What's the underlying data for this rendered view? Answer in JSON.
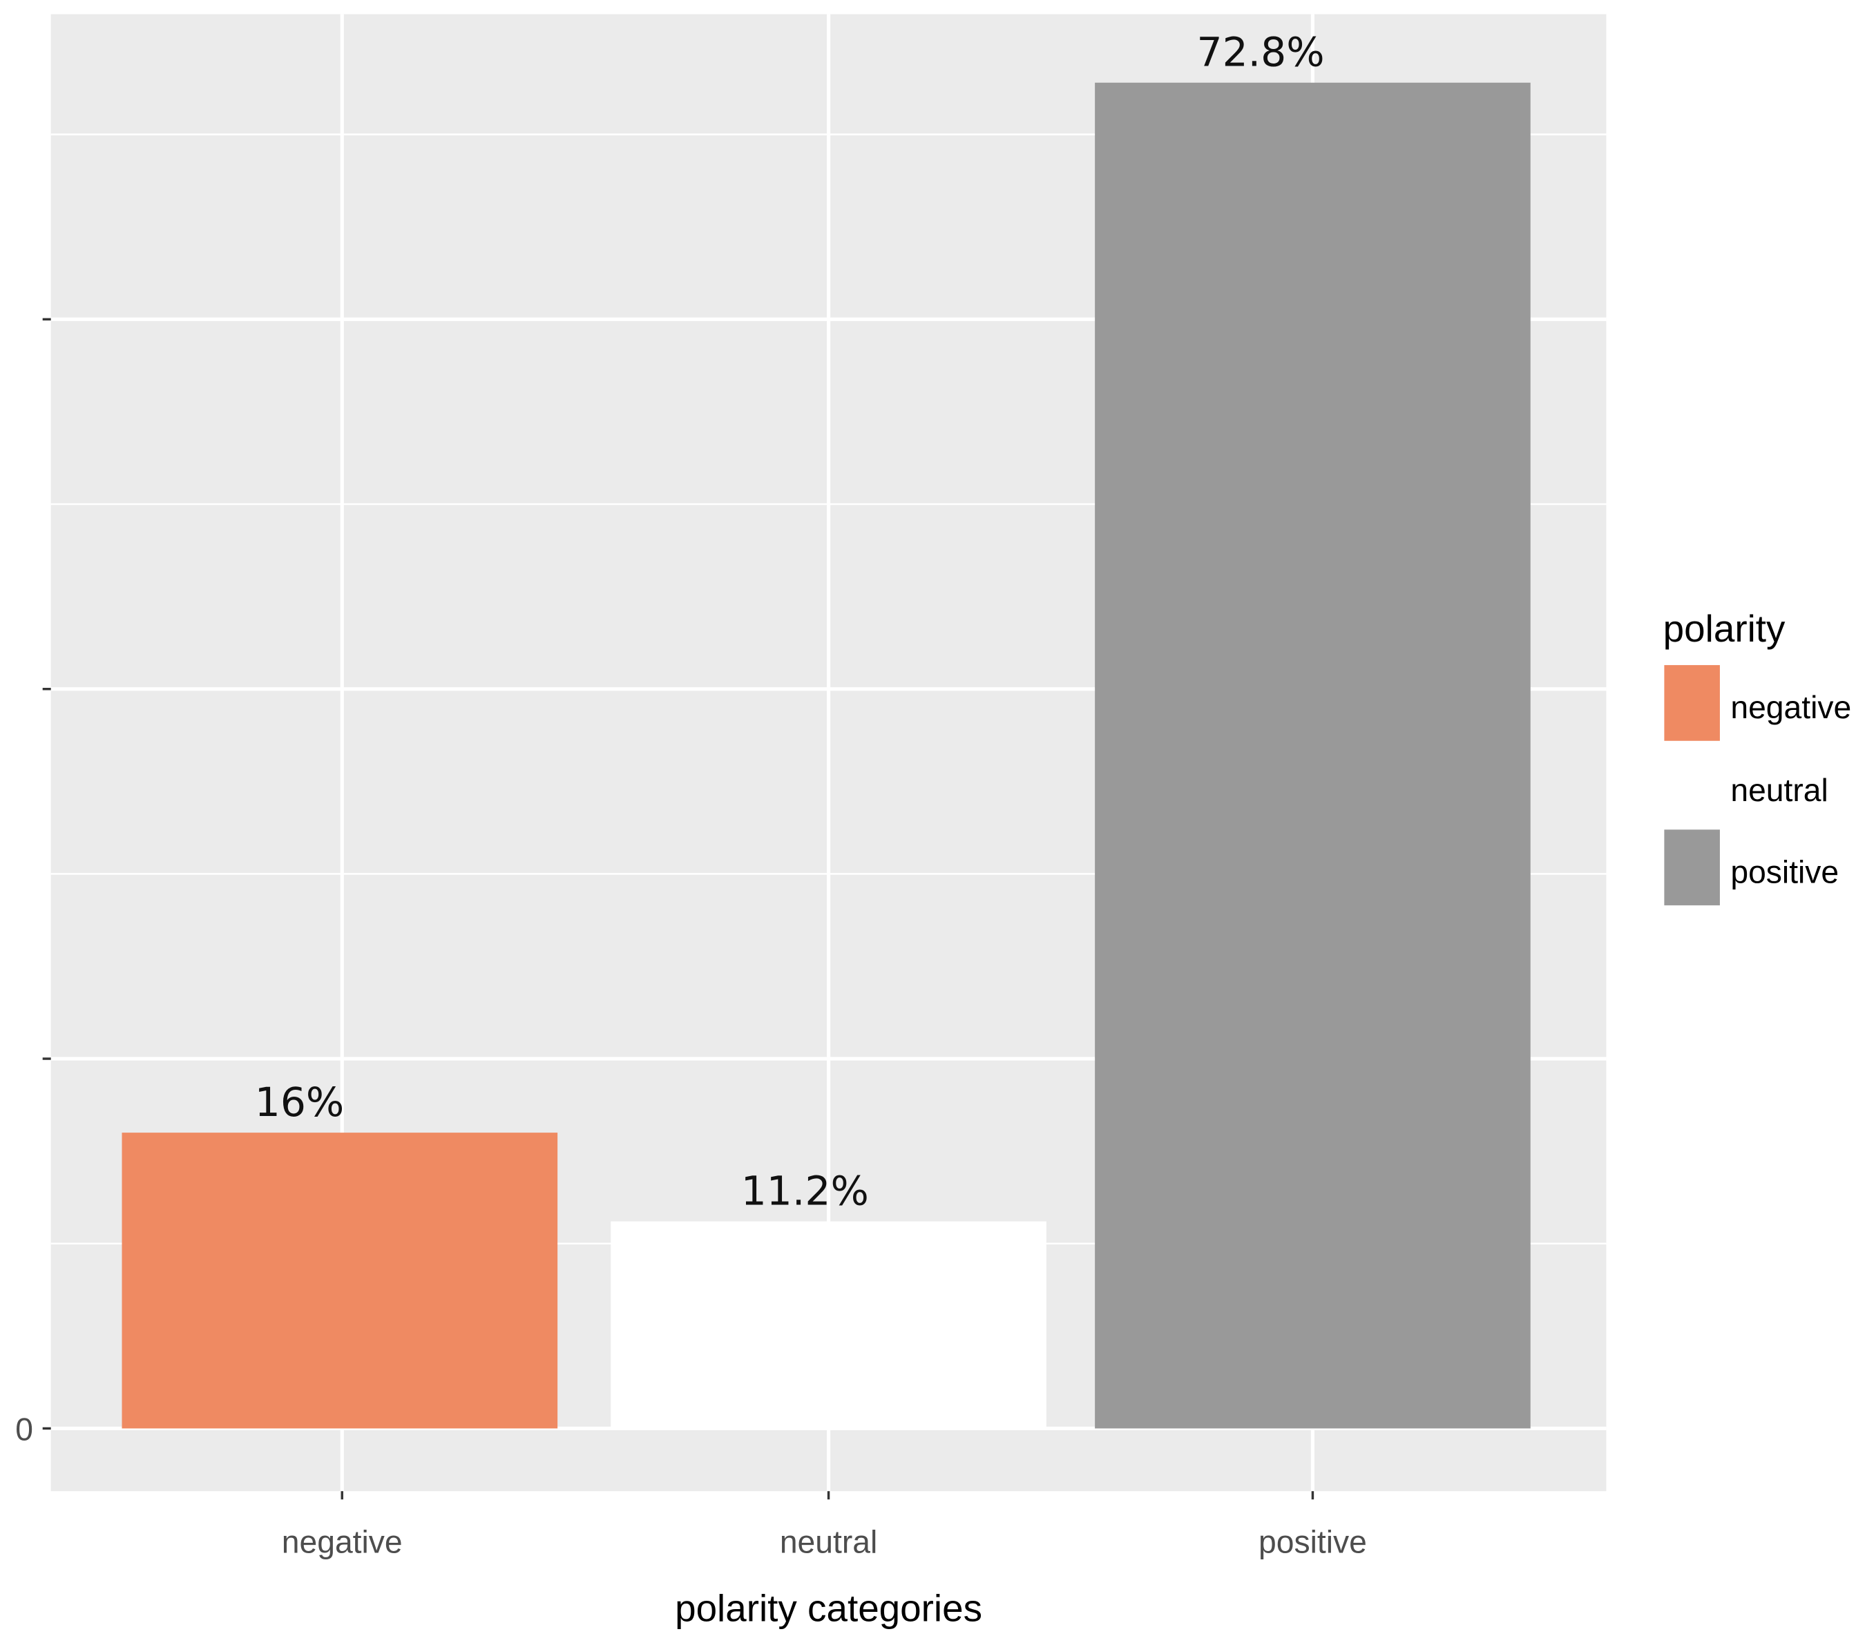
{
  "chart_data": {
    "type": "bar",
    "categories": [
      "negative",
      "neutral",
      "positive"
    ],
    "values": [
      16,
      11.2,
      72.8
    ],
    "data_labels": [
      "16%",
      "11.2%",
      "72.8%"
    ],
    "colors": [
      "#ef8a62",
      "#ffffff",
      "#999999"
    ],
    "title": "",
    "xlabel": "polarity categories",
    "ylabel": "",
    "ylim": [
      0,
      76.5
    ],
    "y_ticks": [
      0,
      20,
      40,
      60
    ],
    "y_tick_labels": [
      "0",
      "",
      "",
      ""
    ],
    "grid": true,
    "panel_background": "#ebebeb",
    "legend": {
      "title": "polarity",
      "placement": "right",
      "entries": [
        "negative",
        "neutral",
        "positive"
      ]
    }
  }
}
